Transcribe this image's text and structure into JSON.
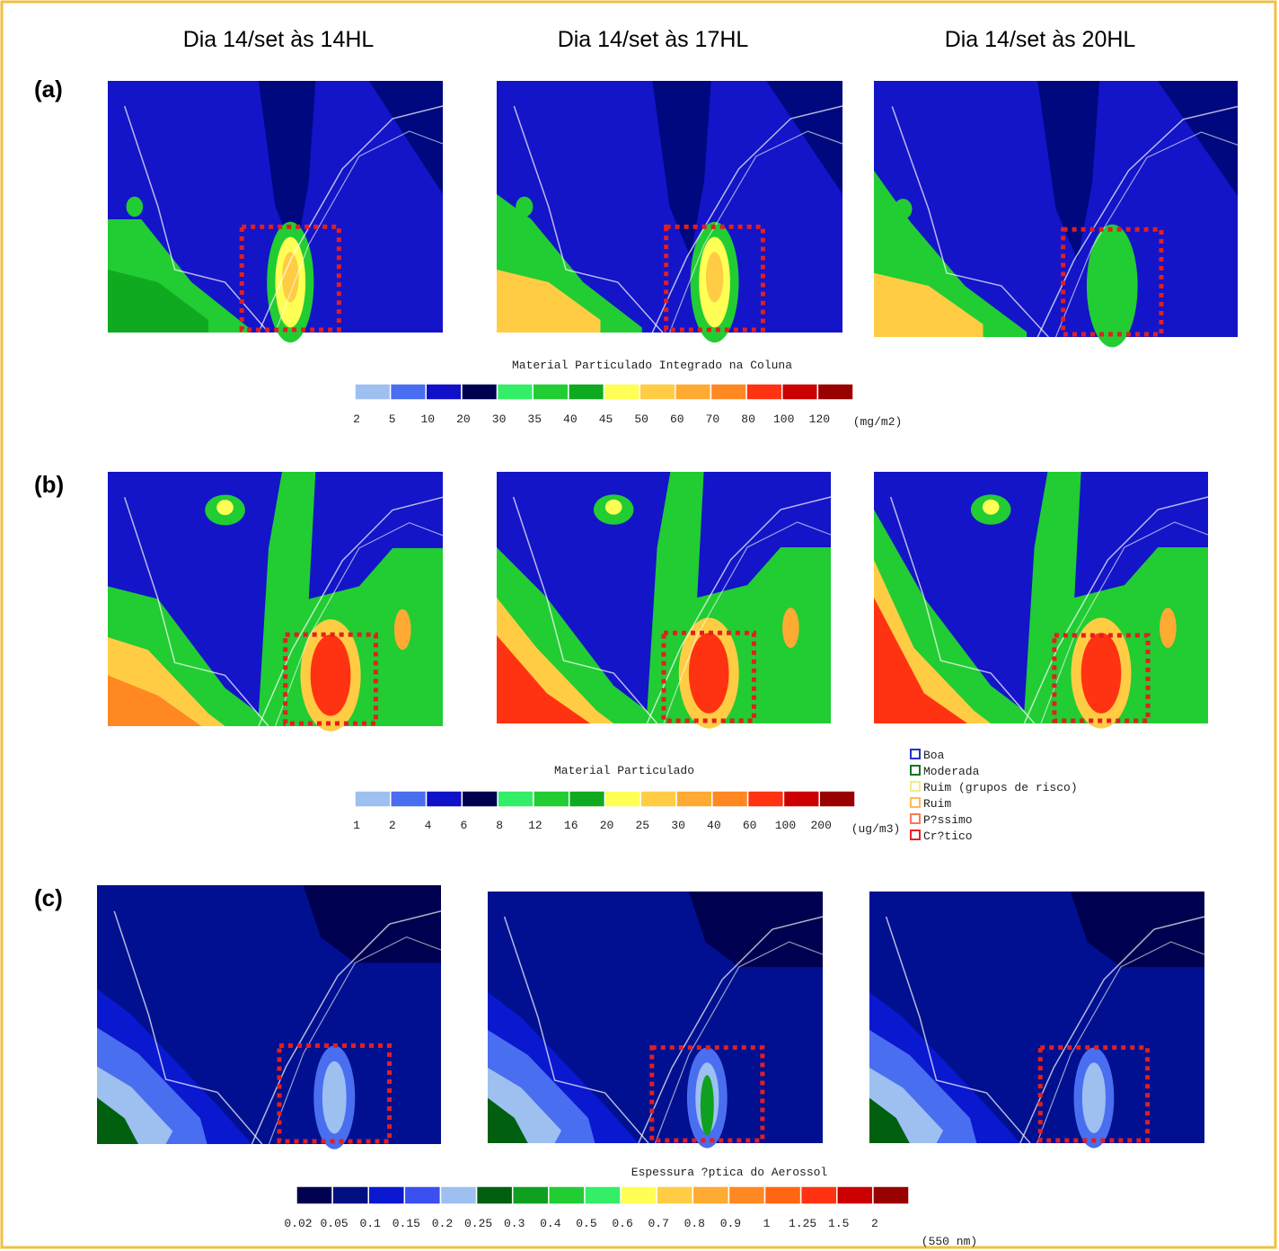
{
  "column_titles": [
    "Dia 14/set às 14HL",
    "Dia 14/set às 17HL",
    "Dia 14/set às 20HL"
  ],
  "panel_labels": [
    "(a)",
    "(b)",
    "(c)"
  ],
  "colorbars": [
    {
      "title": "Material Particulado Integrado na Coluna",
      "colors": [
        "#9ec0f0",
        "#4a6ef0",
        "#1010c8",
        "#000050",
        "#33ee66",
        "#22cc33",
        "#10aa20",
        "#ffff55",
        "#ffcc44",
        "#ffaa33",
        "#ff8822",
        "#ff3311",
        "#cc0000",
        "#990000"
      ],
      "labels": [
        "2",
        "5",
        "10",
        "20",
        "30",
        "35",
        "40",
        "45",
        "50",
        "60",
        "70",
        "80",
        "100",
        "120"
      ],
      "units": "(mg/m2)"
    },
    {
      "title": "Material Particulado",
      "colors": [
        "#9ec0f0",
        "#4a6ef0",
        "#1010c8",
        "#000050",
        "#33ee66",
        "#22cc33",
        "#10aa20",
        "#ffff55",
        "#ffcc44",
        "#ffaa33",
        "#ff8822",
        "#ff3311",
        "#cc0000",
        "#990000"
      ],
      "labels": [
        "1",
        "2",
        "4",
        "6",
        "8",
        "12",
        "16",
        "20",
        "25",
        "30",
        "40",
        "60",
        "100",
        "200"
      ],
      "units": "(ug/m3)"
    },
    {
      "title": "Espessura ?ptica do Aerossol",
      "colors": [
        "#000050",
        "#001080",
        "#0a18d0",
        "#3a50f0",
        "#9ec0f0",
        "#006010",
        "#10a020",
        "#22cc33",
        "#33ee66",
        "#ffff55",
        "#ffcc44",
        "#ffaa33",
        "#ff8822",
        "#ff6611",
        "#ff3311",
        "#cc0000",
        "#990000"
      ],
      "labels": [
        "0.02",
        "0.05",
        "0.1",
        "0.15",
        "0.2",
        "0.25",
        "0.3",
        "0.4",
        "0.5",
        "0.6",
        "0.7",
        "0.8",
        "0.9",
        "1",
        "1.25",
        "1.5",
        "2"
      ],
      "units": "(550 nm)"
    }
  ],
  "legend": [
    {
      "label": "Boa",
      "color": "#2233cc"
    },
    {
      "label": "Moderada",
      "color": "#117722"
    },
    {
      "label": "Ruim (grupos de risco)",
      "color": "#eeee88"
    },
    {
      "label": "Ruim",
      "color": "#ffbb55"
    },
    {
      "label": "P?ssimo",
      "color": "#ff7755"
    },
    {
      "label": "Cr?tico",
      "color": "#ee2222"
    }
  ]
}
